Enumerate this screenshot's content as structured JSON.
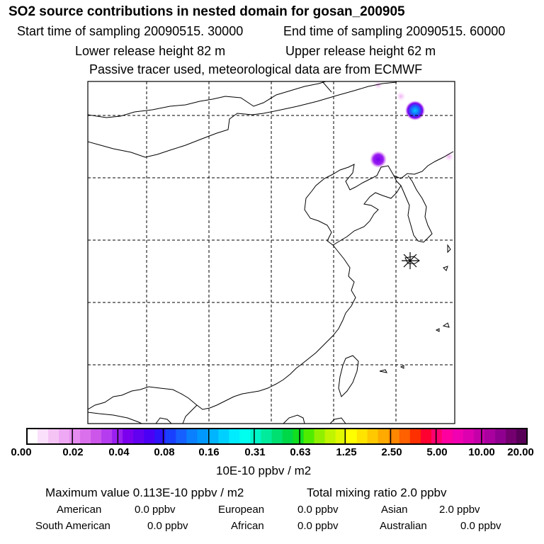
{
  "header": {
    "title": "SO2 source contributions in nested domain for gosan_200905",
    "start_sampling": "Start time of sampling 20090515. 30000",
    "end_sampling": "End time of sampling 20090515. 60000",
    "lower_release": "Lower release height   82 m",
    "upper_release": "Upper release height   62 m",
    "tracer_note": "Passive tracer used, meteorological data are from ECMWF"
  },
  "colorbar": {
    "labels": [
      "0.00",
      "0.02",
      "0.04",
      "0.08",
      "0.16",
      "0.31",
      "0.63",
      "1.25",
      "2.50",
      "5.00",
      "10.00",
      "20.00"
    ],
    "units": "10E-10 ppbv / m2",
    "colors": [
      "#ffffff",
      "#fbe0fb",
      "#f5c4f5",
      "#efa8f3",
      "#e68cf0",
      "#db70ec",
      "#cc55ea",
      "#b63cef",
      "#9a1ff0",
      "#7a00ee",
      "#6200f0",
      "#4a00f5",
      "#2e12fa",
      "#1a40ff",
      "#1560ff",
      "#0a80ff",
      "#0098ff",
      "#00b4ff",
      "#00d0ff",
      "#00ecff",
      "#00ffee",
      "#00f6c8",
      "#00ec9c",
      "#00e070",
      "#00d848",
      "#10e020",
      "#50ec00",
      "#90f000",
      "#c0f400",
      "#e0f800",
      "#ffff00",
      "#ffe400",
      "#ffc800",
      "#ffaa00",
      "#ff8800",
      "#ff6000",
      "#ff3000",
      "#ff0030",
      "#ff0070",
      "#ff00a0",
      "#f000b0",
      "#dc00b0",
      "#c400a8",
      "#aa00a0",
      "#900090",
      "#740070",
      "#580058"
    ]
  },
  "stats": {
    "max_value": "Maximum value  0.113E-10 ppbv / m2",
    "total_mixing": "Total mixing ratio       2.0 ppbv",
    "american_label": "American",
    "american_value": "0.0 ppbv",
    "european_label": "European",
    "european_value": "0.0 ppbv",
    "asian_label": "Asian",
    "asian_value": "2.0 ppbv",
    "south_american_label": "South American",
    "south_american_value": "0.0 ppbv",
    "african_label": "African",
    "african_value": "0.0 ppbv",
    "australian_label": "Australian",
    "australian_value": "0.0 ppbv"
  },
  "map": {
    "station_marker": "gosan-station-star",
    "source_blobs": [
      {
        "name": "source-blob-northeast",
        "level": "0.08"
      },
      {
        "name": "source-blob-north",
        "level": "0.04"
      }
    ]
  }
}
